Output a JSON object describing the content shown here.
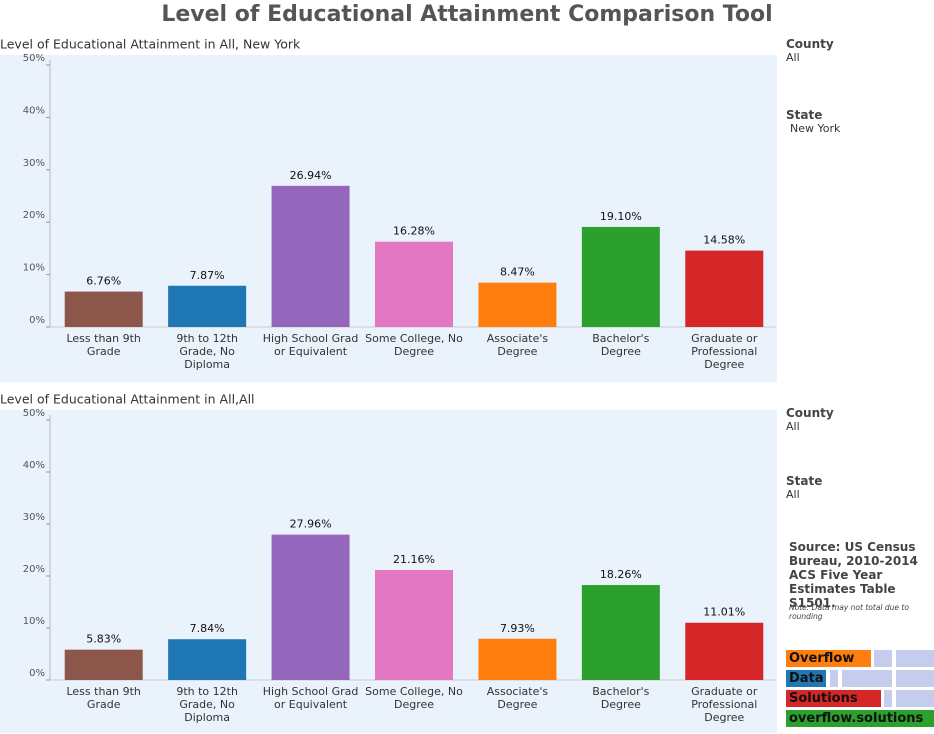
{
  "title": "Level of Educational Attainment Comparison Tool",
  "chart_data": [
    {
      "type": "bar",
      "title": "Level of Educational Attainment in All, New York",
      "categories": [
        "Less than 9th Grade",
        "9th to 12th Grade, No Diploma",
        "High School Grad or Equivalent",
        "Some College, No Degree",
        "Associate's Degree",
        "Bachelor's Degree",
        "Graduate or Professional Degree"
      ],
      "values": [
        6.76,
        7.87,
        26.94,
        16.28,
        8.47,
        19.1,
        14.58
      ],
      "value_labels": [
        "6.76%",
        "7.87%",
        "26.94%",
        "16.28%",
        "8.47%",
        "19.10%",
        "14.58%"
      ],
      "colors": [
        "#8c564b",
        "#1f77b4",
        "#9467bd",
        "#e377c2",
        "#ff7f0e",
        "#2ca02c",
        "#d62728"
      ],
      "ylim": [
        0,
        50
      ],
      "yticks": [
        {
          "value": 0,
          "label": "0%"
        },
        {
          "value": 10,
          "label": "10%"
        },
        {
          "value": 20,
          "label": "20%"
        },
        {
          "value": 30,
          "label": "30%"
        },
        {
          "value": 40,
          "label": "40%"
        },
        {
          "value": 50,
          "label": "50%"
        }
      ]
    },
    {
      "type": "bar",
      "title": "Level of Educational Attainment in All,All",
      "categories": [
        "Less than 9th Grade",
        "9th to 12th Grade, No Diploma",
        "High School Grad or Equivalent",
        "Some College, No Degree",
        "Associate's Degree",
        "Bachelor's Degree",
        "Graduate or Professional Degree"
      ],
      "values": [
        5.83,
        7.84,
        27.96,
        21.16,
        7.93,
        18.26,
        11.01
      ],
      "value_labels": [
        "5.83%",
        "7.84%",
        "27.96%",
        "21.16%",
        "7.93%",
        "18.26%",
        "11.01%"
      ],
      "colors": [
        "#8c564b",
        "#1f77b4",
        "#9467bd",
        "#e377c2",
        "#ff7f0e",
        "#2ca02c",
        "#d62728"
      ],
      "ylim": [
        0,
        50
      ],
      "yticks": [
        {
          "value": 0,
          "label": "0%"
        },
        {
          "value": 10,
          "label": "10%"
        },
        {
          "value": 20,
          "label": "20%"
        },
        {
          "value": 30,
          "label": "30%"
        },
        {
          "value": 40,
          "label": "40%"
        },
        {
          "value": 50,
          "label": "50%"
        }
      ]
    }
  ],
  "filters": [
    {
      "county_label": "County",
      "county": "All",
      "state_label": "State",
      "state": "New York"
    },
    {
      "county_label": "County",
      "county": "All",
      "state_label": "State",
      "state": "All"
    }
  ],
  "source": "Source: US Census Bureau, 2010-2014 ACS Five Year Estimates Table S1501.",
  "note": "Note: Data may not total due to rounding",
  "logo": [
    "Overflow",
    "Data",
    "Solutions",
    "overflow.solutions"
  ]
}
